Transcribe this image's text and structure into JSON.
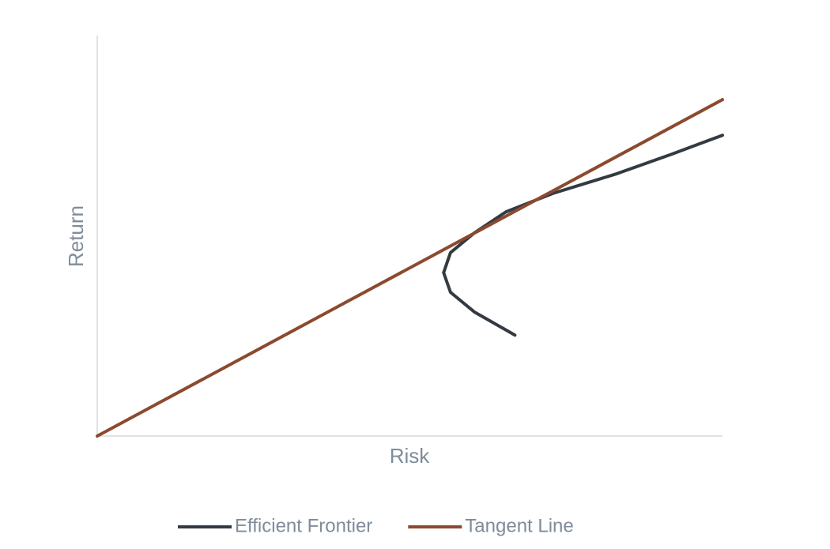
{
  "chart_data": {
    "type": "line",
    "x_label": "Risk",
    "y_label": "Return",
    "xlim": [
      0,
      100
    ],
    "ylim": [
      0,
      100
    ],
    "legend": "bottom",
    "series": [
      {
        "name": "Efficient Frontier",
        "color": "#343a42",
        "x": [
          66.8,
          60.3,
          56.5,
          55.4,
          56.5,
          60.3,
          65.4,
          72.9,
          83.1,
          91.9,
          100
        ],
        "values": [
          25.2,
          31.0,
          35.9,
          40.8,
          45.8,
          50.7,
          56.0,
          60.6,
          65.5,
          70.4,
          75.1
        ]
      },
      {
        "name": "Tangent Line",
        "color": "#8b4a2f",
        "x": [
          0,
          100
        ],
        "values": [
          0,
          84.0
        ]
      }
    ]
  }
}
